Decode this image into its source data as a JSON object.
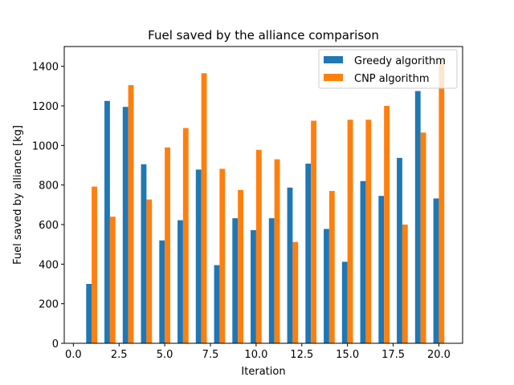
{
  "chart_data": {
    "type": "bar",
    "title": "Fuel saved by the alliance comparison",
    "xlabel": "Iteration",
    "ylabel": "Fuel saved by alliance [kg]",
    "xlim": [
      -0.5,
      21.3
    ],
    "ylim": [
      0,
      1500
    ],
    "xticks": [
      0.0,
      2.5,
      5.0,
      7.5,
      10.0,
      12.5,
      15.0,
      17.5,
      20.0
    ],
    "xtick_labels": [
      "0.0",
      "2.5",
      "5.0",
      "7.5",
      "10.0",
      "12.5",
      "15.0",
      "17.5",
      "20.0"
    ],
    "yticks": [
      0,
      200,
      400,
      600,
      800,
      1000,
      1200,
      1400
    ],
    "ytick_labels": [
      "0",
      "200",
      "400",
      "600",
      "800",
      "1000",
      "1200",
      "1400"
    ],
    "bar_width": 0.3,
    "grid": false,
    "legend_position": "top-right",
    "x": [
      1,
      2,
      3,
      4,
      5,
      6,
      7,
      8,
      9,
      10,
      11,
      12,
      13,
      14,
      15,
      16,
      17,
      18,
      19,
      20
    ],
    "series": [
      {
        "name": "Greedy algorithm",
        "color": "#1f77b4",
        "offset": -0.15,
        "values": [
          300,
          1225,
          1195,
          905,
          520,
          622,
          878,
          395,
          632,
          572,
          632,
          787,
          908,
          578,
          412,
          820,
          745,
          937,
          1275,
          732
        ]
      },
      {
        "name": "CNP algorithm",
        "color": "#ff7f0e",
        "offset": 0.15,
        "values": [
          792,
          640,
          1305,
          727,
          990,
          1088,
          1365,
          882,
          775,
          978,
          930,
          512,
          1125,
          770,
          1130,
          1130,
          1200,
          600,
          1065,
          1430
        ]
      }
    ]
  }
}
